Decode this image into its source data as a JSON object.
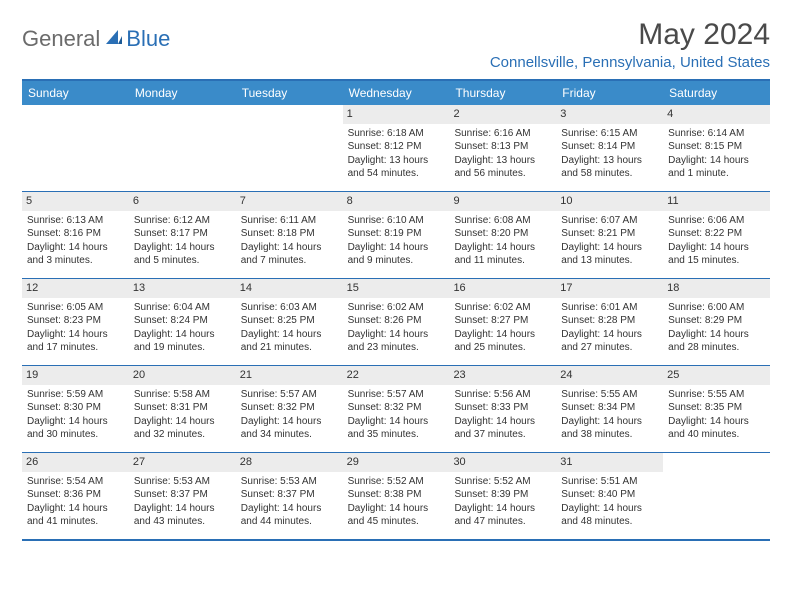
{
  "logo": {
    "text1": "General",
    "text2": "Blue"
  },
  "title": "May 2024",
  "location": "Connellsville, Pennsylvania, United States",
  "colors": {
    "accent": "#2a6fb5",
    "header_bg": "#3a8bc9",
    "daynum_bg": "#ececec",
    "text": "#333333",
    "logo_gray": "#6b6b6b"
  },
  "weekdays": [
    "Sunday",
    "Monday",
    "Tuesday",
    "Wednesday",
    "Thursday",
    "Friday",
    "Saturday"
  ],
  "weeks": [
    [
      {
        "empty": true
      },
      {
        "empty": true
      },
      {
        "empty": true
      },
      {
        "num": "1",
        "sunrise": "6:18 AM",
        "sunset": "8:12 PM",
        "daylight": "13 hours and 54 minutes."
      },
      {
        "num": "2",
        "sunrise": "6:16 AM",
        "sunset": "8:13 PM",
        "daylight": "13 hours and 56 minutes."
      },
      {
        "num": "3",
        "sunrise": "6:15 AM",
        "sunset": "8:14 PM",
        "daylight": "13 hours and 58 minutes."
      },
      {
        "num": "4",
        "sunrise": "6:14 AM",
        "sunset": "8:15 PM",
        "daylight": "14 hours and 1 minute."
      }
    ],
    [
      {
        "num": "5",
        "sunrise": "6:13 AM",
        "sunset": "8:16 PM",
        "daylight": "14 hours and 3 minutes."
      },
      {
        "num": "6",
        "sunrise": "6:12 AM",
        "sunset": "8:17 PM",
        "daylight": "14 hours and 5 minutes."
      },
      {
        "num": "7",
        "sunrise": "6:11 AM",
        "sunset": "8:18 PM",
        "daylight": "14 hours and 7 minutes."
      },
      {
        "num": "8",
        "sunrise": "6:10 AM",
        "sunset": "8:19 PM",
        "daylight": "14 hours and 9 minutes."
      },
      {
        "num": "9",
        "sunrise": "6:08 AM",
        "sunset": "8:20 PM",
        "daylight": "14 hours and 11 minutes."
      },
      {
        "num": "10",
        "sunrise": "6:07 AM",
        "sunset": "8:21 PM",
        "daylight": "14 hours and 13 minutes."
      },
      {
        "num": "11",
        "sunrise": "6:06 AM",
        "sunset": "8:22 PM",
        "daylight": "14 hours and 15 minutes."
      }
    ],
    [
      {
        "num": "12",
        "sunrise": "6:05 AM",
        "sunset": "8:23 PM",
        "daylight": "14 hours and 17 minutes."
      },
      {
        "num": "13",
        "sunrise": "6:04 AM",
        "sunset": "8:24 PM",
        "daylight": "14 hours and 19 minutes."
      },
      {
        "num": "14",
        "sunrise": "6:03 AM",
        "sunset": "8:25 PM",
        "daylight": "14 hours and 21 minutes."
      },
      {
        "num": "15",
        "sunrise": "6:02 AM",
        "sunset": "8:26 PM",
        "daylight": "14 hours and 23 minutes."
      },
      {
        "num": "16",
        "sunrise": "6:02 AM",
        "sunset": "8:27 PM",
        "daylight": "14 hours and 25 minutes."
      },
      {
        "num": "17",
        "sunrise": "6:01 AM",
        "sunset": "8:28 PM",
        "daylight": "14 hours and 27 minutes."
      },
      {
        "num": "18",
        "sunrise": "6:00 AM",
        "sunset": "8:29 PM",
        "daylight": "14 hours and 28 minutes."
      }
    ],
    [
      {
        "num": "19",
        "sunrise": "5:59 AM",
        "sunset": "8:30 PM",
        "daylight": "14 hours and 30 minutes."
      },
      {
        "num": "20",
        "sunrise": "5:58 AM",
        "sunset": "8:31 PM",
        "daylight": "14 hours and 32 minutes."
      },
      {
        "num": "21",
        "sunrise": "5:57 AM",
        "sunset": "8:32 PM",
        "daylight": "14 hours and 34 minutes."
      },
      {
        "num": "22",
        "sunrise": "5:57 AM",
        "sunset": "8:32 PM",
        "daylight": "14 hours and 35 minutes."
      },
      {
        "num": "23",
        "sunrise": "5:56 AM",
        "sunset": "8:33 PM",
        "daylight": "14 hours and 37 minutes."
      },
      {
        "num": "24",
        "sunrise": "5:55 AM",
        "sunset": "8:34 PM",
        "daylight": "14 hours and 38 minutes."
      },
      {
        "num": "25",
        "sunrise": "5:55 AM",
        "sunset": "8:35 PM",
        "daylight": "14 hours and 40 minutes."
      }
    ],
    [
      {
        "num": "26",
        "sunrise": "5:54 AM",
        "sunset": "8:36 PM",
        "daylight": "14 hours and 41 minutes."
      },
      {
        "num": "27",
        "sunrise": "5:53 AM",
        "sunset": "8:37 PM",
        "daylight": "14 hours and 43 minutes."
      },
      {
        "num": "28",
        "sunrise": "5:53 AM",
        "sunset": "8:37 PM",
        "daylight": "14 hours and 44 minutes."
      },
      {
        "num": "29",
        "sunrise": "5:52 AM",
        "sunset": "8:38 PM",
        "daylight": "14 hours and 45 minutes."
      },
      {
        "num": "30",
        "sunrise": "5:52 AM",
        "sunset": "8:39 PM",
        "daylight": "14 hours and 47 minutes."
      },
      {
        "num": "31",
        "sunrise": "5:51 AM",
        "sunset": "8:40 PM",
        "daylight": "14 hours and 48 minutes."
      },
      {
        "empty": true
      }
    ]
  ]
}
